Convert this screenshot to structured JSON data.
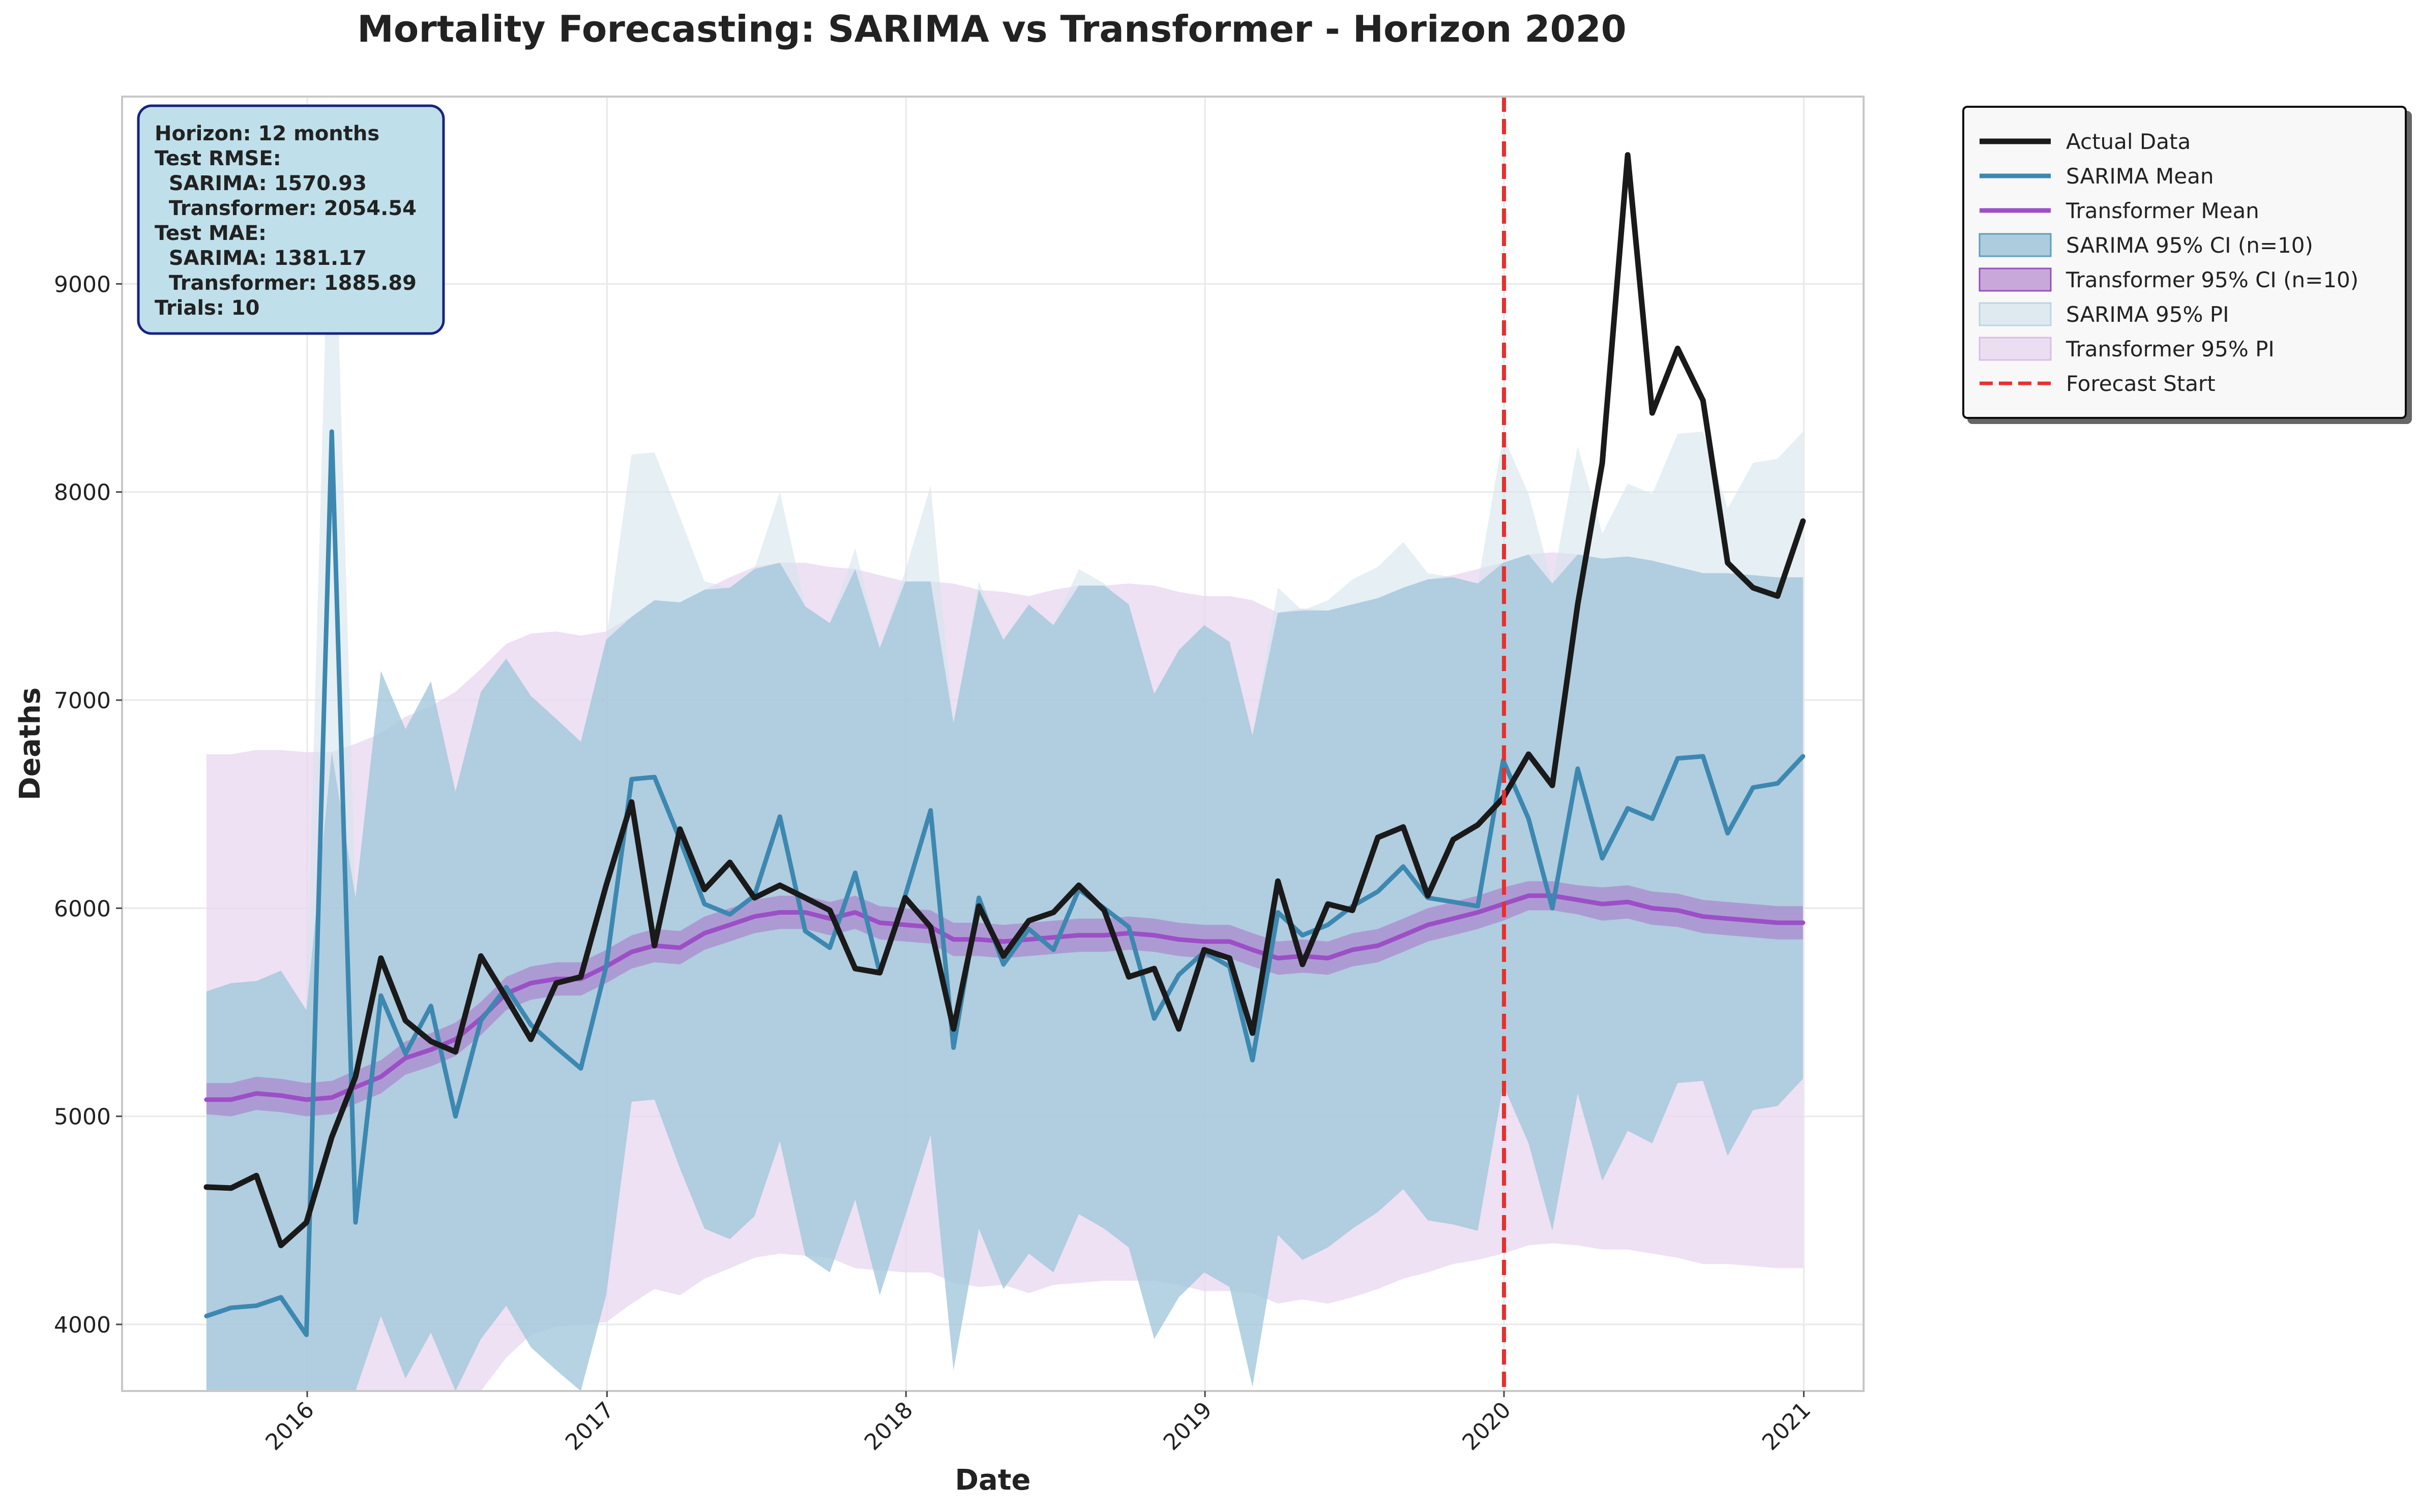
{
  "chart_data": {
    "type": "line",
    "title": "Mortality Forecasting: SARIMA vs Transformer - Horizon 2020",
    "xlabel": "Date",
    "ylabel": "Deaths",
    "x_start": "2015-08",
    "x_end": "2020-12",
    "xlim": [
      "2015-05-20",
      "2021-03-15"
    ],
    "ylim": [
      3680,
      9900
    ],
    "x_ticks": [
      "2016",
      "2017",
      "2018",
      "2019",
      "2020",
      "2021"
    ],
    "x_tick_dates": [
      "2016-01-01",
      "2017-01-01",
      "2018-01-01",
      "2019-01-01",
      "2020-01-01",
      "2021-01-01"
    ],
    "y_ticks": [
      4000,
      5000,
      6000,
      7000,
      8000,
      9000
    ],
    "grid": true,
    "legend_position": "outside-right",
    "forecast_start": "2020-01-01",
    "forecast_label": "Forecast Start",
    "colors": {
      "actual": "#1a1a1a",
      "sarima": "#3c88b0",
      "transformer": "#9c4fc6",
      "sarima_ci": "#7bb1cf",
      "transformer_ci": "#a873c7",
      "sarima_pi": "#d3e4ec",
      "transformer_pi": "#e8d7ef",
      "forecast": "#e8302c",
      "info_box_bg": "#bfe0eb",
      "info_box_border": "#1a237e"
    },
    "info_box": {
      "lines": [
        "Horizon: 12 months",
        "Test RMSE:",
        "  SARIMA: 1570.93",
        "  Transformer: 2054.54",
        "Test MAE:",
        "  SARIMA: 1381.17",
        "  Transformer: 1885.89",
        "Trials: 10"
      ]
    },
    "legend": [
      {
        "label": "Actual Data",
        "kind": "line",
        "key": "actual"
      },
      {
        "label": "SARIMA Mean",
        "kind": "line",
        "key": "sarima"
      },
      {
        "label": "Transformer Mean",
        "kind": "line",
        "key": "transformer"
      },
      {
        "label": "SARIMA 95% CI (n=10)",
        "kind": "patch",
        "key": "sarima_ci"
      },
      {
        "label": "Transformer 95% CI (n=10)",
        "kind": "patch",
        "key": "transformer_ci"
      },
      {
        "label": "SARIMA 95% PI",
        "kind": "patch",
        "key": "sarima_pi"
      },
      {
        "label": "Transformer 95% PI",
        "kind": "patch",
        "key": "transformer_pi"
      },
      {
        "label": "Forecast Start",
        "kind": "dashed",
        "key": "forecast"
      }
    ],
    "series": [
      {
        "name": "Actual Data",
        "values": [
          4660,
          4655,
          4715,
          4380,
          4490,
          4900,
          5190,
          5760,
          5460,
          5360,
          5310,
          5770,
          5570,
          5370,
          5640,
          5670,
          6110,
          6510,
          5820,
          6380,
          6090,
          6220,
          6050,
          6110,
          6050,
          5990,
          5710,
          5690,
          6050,
          5910,
          5420,
          6010,
          5770,
          5940,
          5980,
          6110,
          5990,
          5670,
          5710,
          5420,
          5800,
          5760,
          5400,
          6130,
          5730,
          6020,
          5990,
          6340,
          6390,
          6060,
          6330,
          6400,
          6530,
          6740,
          6590,
          7460,
          8140,
          9620,
          8380,
          8690,
          8440,
          7660,
          7540,
          7500,
          7860
        ]
      },
      {
        "name": "SARIMA Mean",
        "values": [
          4040,
          4080,
          4090,
          4130,
          3950,
          8290,
          4490,
          5580,
          5300,
          5530,
          5000,
          5460,
          5620,
          5440,
          5330,
          5230,
          5720,
          6620,
          6630,
          6330,
          6020,
          5970,
          6060,
          6440,
          5890,
          5810,
          6170,
          5690,
          6060,
          6470,
          5330,
          6050,
          5730,
          5900,
          5800,
          6090,
          6000,
          5910,
          5470,
          5680,
          5790,
          5720,
          5270,
          5980,
          5870,
          5920,
          6010,
          6080,
          6200,
          6050,
          6030,
          6010,
          6710,
          6430,
          6000,
          6670,
          6240,
          6480,
          6430,
          6720,
          6730,
          6360,
          6580,
          6600,
          6730
        ]
      },
      {
        "name": "Transformer Mean",
        "values": [
          5080,
          5080,
          5110,
          5100,
          5080,
          5090,
          5140,
          5190,
          5280,
          5320,
          5370,
          5470,
          5590,
          5640,
          5660,
          5660,
          5720,
          5790,
          5820,
          5810,
          5880,
          5920,
          5960,
          5980,
          5980,
          5950,
          5980,
          5930,
          5920,
          5910,
          5850,
          5850,
          5840,
          5850,
          5860,
          5870,
          5870,
          5880,
          5870,
          5850,
          5840,
          5840,
          5800,
          5760,
          5770,
          5760,
          5800,
          5820,
          5870,
          5920,
          5950,
          5980,
          6020,
          6060,
          6060,
          6040,
          6020,
          6030,
          6000,
          5990,
          5960,
          5950,
          5940,
          5930,
          5930
        ]
      }
    ],
    "bands": [
      {
        "name": "Transformer 95% PI",
        "key": "transformer_pi",
        "lower": [
          3680,
          3680,
          3680,
          3680,
          3680,
          3680,
          3680,
          3680,
          3680,
          3680,
          3680,
          3680,
          3840,
          3950,
          3990,
          4000,
          4010,
          4100,
          4170,
          4140,
          4220,
          4270,
          4320,
          4340,
          4330,
          4320,
          4270,
          4260,
          4250,
          4250,
          4200,
          4180,
          4190,
          4150,
          4190,
          4200,
          4210,
          4210,
          4210,
          4190,
          4160,
          4160,
          4150,
          4100,
          4120,
          4100,
          4130,
          4170,
          4220,
          4250,
          4290,
          4310,
          4340,
          4380,
          4390,
          4380,
          4360,
          4360,
          4340,
          4320,
          4290,
          4290,
          4280,
          4270,
          4270
        ],
        "upper": [
          6740,
          6740,
          6760,
          6760,
          6750,
          6750,
          6790,
          6840,
          6920,
          6970,
          7040,
          7150,
          7270,
          7320,
          7330,
          7310,
          7330,
          7400,
          7480,
          7470,
          7530,
          7590,
          7640,
          7660,
          7660,
          7640,
          7630,
          7600,
          7570,
          7570,
          7560,
          7530,
          7520,
          7500,
          7530,
          7550,
          7550,
          7560,
          7550,
          7520,
          7500,
          7500,
          7480,
          7420,
          7440,
          7430,
          7460,
          7490,
          7540,
          7580,
          7600,
          7630,
          7660,
          7700,
          7710,
          7700,
          7680,
          7690,
          7670,
          7640,
          7610,
          7610,
          7600,
          7590,
          7590
        ]
      },
      {
        "name": "SARIMA 95% PI",
        "key": "sarima_pi",
        "lower": [
          3680,
          3680,
          3680,
          3680,
          3680,
          3680,
          3680,
          4040,
          3740,
          3960,
          3680,
          3930,
          4090,
          3890,
          3780,
          3680,
          4140,
          5070,
          5080,
          4750,
          4460,
          4410,
          4520,
          4880,
          4330,
          4250,
          4600,
          4140,
          4520,
          4910,
          3780,
          4460,
          4170,
          4340,
          4250,
          4530,
          4460,
          4370,
          3930,
          4130,
          4250,
          4180,
          3700,
          4430,
          4310,
          4370,
          4460,
          4540,
          4650,
          4500,
          4480,
          4450,
          5150,
          4870,
          4450,
          5110,
          4690,
          4930,
          4870,
          5160,
          5170,
          4810,
          5030,
          5050,
          5180
        ],
        "upper": [
          5600,
          5640,
          5650,
          5700,
          5510,
          9900,
          6050,
          7140,
          6860,
          7090,
          6560,
          7040,
          7200,
          7020,
          6910,
          6800,
          7290,
          8180,
          8190,
          7880,
          7570,
          7540,
          7630,
          8000,
          7450,
          7370,
          7730,
          7250,
          7620,
          8030,
          6890,
          7570,
          7290,
          7460,
          7360,
          7630,
          7560,
          7460,
          7030,
          7240,
          7360,
          7280,
          6830,
          7540,
          7430,
          7480,
          7580,
          7640,
          7760,
          7610,
          7590,
          7560,
          8270,
          7990,
          7560,
          8220,
          7800,
          8040,
          7990,
          8280,
          8290,
          7920,
          8140,
          8160,
          8290
        ]
      },
      {
        "name": "SARIMA 95% CI (n=10)",
        "key": "sarima_ci",
        "lower": [
          3680,
          3680,
          3680,
          3680,
          3680,
          3680,
          3680,
          4040,
          3740,
          3960,
          3680,
          3930,
          4090,
          3890,
          3780,
          3680,
          4140,
          5070,
          5080,
          4750,
          4460,
          4410,
          4520,
          4880,
          4330,
          4250,
          4600,
          4140,
          4520,
          4910,
          3780,
          4460,
          4170,
          4340,
          4250,
          4530,
          4460,
          4370,
          3930,
          4130,
          4250,
          4180,
          3700,
          4430,
          4310,
          4370,
          4460,
          4540,
          4650,
          4500,
          4480,
          4450,
          5150,
          4870,
          4450,
          5110,
          4690,
          4930,
          4870,
          5160,
          5170,
          4810,
          5030,
          5050,
          5180
        ],
        "upper": [
          5600,
          5640,
          5650,
          5700,
          5510,
          6750,
          6050,
          7140,
          6860,
          7090,
          6560,
          7040,
          7200,
          7020,
          6910,
          6800,
          7290,
          7400,
          7480,
          7470,
          7530,
          7540,
          7630,
          7660,
          7450,
          7370,
          7630,
          7250,
          7570,
          7570,
          6890,
          7530,
          7290,
          7460,
          7360,
          7550,
          7550,
          7460,
          7030,
          7240,
          7360,
          7280,
          6830,
          7420,
          7430,
          7430,
          7460,
          7490,
          7540,
          7580,
          7590,
          7560,
          7660,
          7700,
          7560,
          7700,
          7680,
          7690,
          7670,
          7640,
          7610,
          7610,
          7600,
          7590,
          7590
        ]
      },
      {
        "name": "Transformer 95% CI (n=10)",
        "key": "transformer_ci",
        "lower": [
          5010,
          5000,
          5030,
          5020,
          5000,
          5010,
          5060,
          5110,
          5200,
          5240,
          5290,
          5390,
          5510,
          5560,
          5580,
          5580,
          5640,
          5710,
          5740,
          5730,
          5800,
          5840,
          5880,
          5900,
          5900,
          5870,
          5900,
          5850,
          5840,
          5830,
          5770,
          5770,
          5760,
          5770,
          5780,
          5790,
          5790,
          5800,
          5790,
          5770,
          5760,
          5760,
          5720,
          5680,
          5690,
          5680,
          5720,
          5740,
          5790,
          5840,
          5870,
          5900,
          5940,
          5990,
          5990,
          5970,
          5940,
          5950,
          5920,
          5910,
          5880,
          5870,
          5860,
          5850,
          5850
        ],
        "upper": [
          5160,
          5160,
          5190,
          5180,
          5160,
          5170,
          5220,
          5270,
          5360,
          5400,
          5450,
          5550,
          5670,
          5720,
          5740,
          5740,
          5800,
          5870,
          5900,
          5890,
          5960,
          6000,
          6040,
          6060,
          6060,
          6030,
          6060,
          6010,
          6000,
          5990,
          5930,
          5930,
          5920,
          5930,
          5940,
          5950,
          5950,
          5960,
          5950,
          5930,
          5920,
          5920,
          5880,
          5840,
          5850,
          5840,
          5880,
          5900,
          5950,
          6000,
          6030,
          6060,
          6100,
          6130,
          6130,
          6110,
          6100,
          6110,
          6080,
          6070,
          6040,
          6030,
          6020,
          6010,
          6010
        ]
      }
    ]
  }
}
